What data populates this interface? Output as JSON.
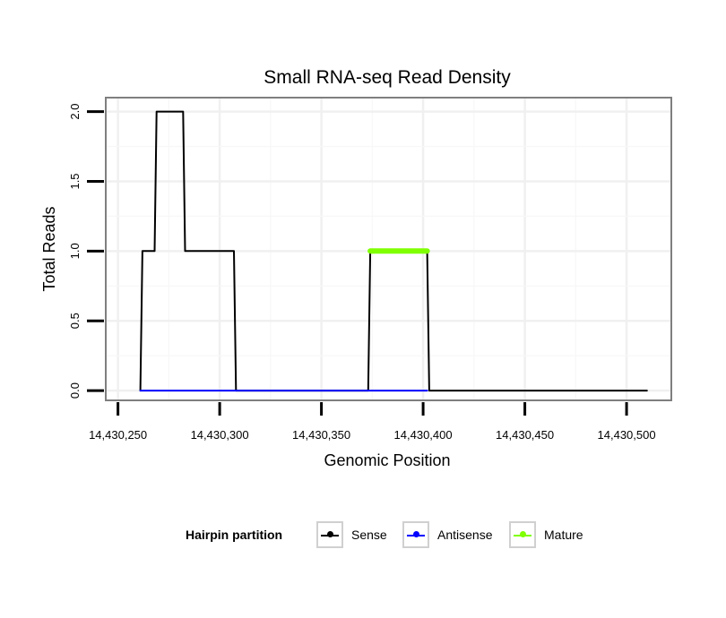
{
  "chart_data": {
    "type": "line",
    "title": "Small RNA-seq Read Density",
    "xlabel": "Genomic Position",
    "ylabel": "Total Reads",
    "xlim": [
      14430244,
      14430522
    ],
    "ylim": [
      -0.07,
      2.1
    ],
    "x_ticks": [
      14430250,
      14430300,
      14430350,
      14430400,
      14430450,
      14430500
    ],
    "x_tick_labels": [
      "14,430,250",
      "14,430,300",
      "14,430,350",
      "14,430,400",
      "14,430,450",
      "14,430,500"
    ],
    "y_ticks": [
      0,
      0.5,
      1,
      1.5,
      2
    ],
    "y_tick_labels": [
      "0.0",
      "0.5",
      "1.0",
      "1.5",
      "2.0"
    ],
    "grid": true,
    "series": [
      {
        "name": "Sense",
        "color": "#000000",
        "x": [
          14430261,
          14430262,
          14430268,
          14430269,
          14430282,
          14430283,
          14430307,
          14430308,
          14430373,
          14430374,
          14430402,
          14430403,
          14430510
        ],
        "values": [
          0,
          1,
          1,
          2,
          2,
          1,
          1,
          0,
          0,
          1,
          1,
          0,
          0
        ]
      },
      {
        "name": "Antisense",
        "color": "#0000ff",
        "x": [
          14430261,
          14430307,
          14430374,
          14430402
        ],
        "values": [
          0,
          0,
          0,
          0
        ]
      },
      {
        "name": "Mature",
        "color": "#7fff00",
        "x": [
          14430374,
          14430402
        ],
        "values": [
          1,
          1
        ]
      }
    ]
  },
  "legend": {
    "title": "Hairpin partition",
    "items": [
      {
        "label": "Sense",
        "color": "#000000"
      },
      {
        "label": "Antisense",
        "color": "#0000ff"
      },
      {
        "label": "Mature",
        "color": "#7fff00"
      }
    ]
  }
}
